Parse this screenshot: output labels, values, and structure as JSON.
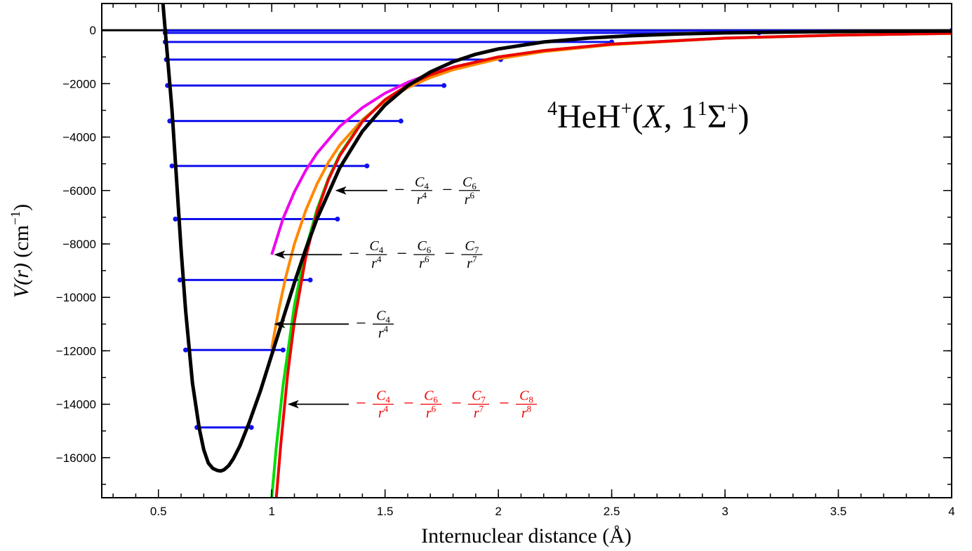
{
  "chart_data": {
    "type": "line",
    "title": "⁴HeH⁺(X, 1¹Σ⁺)",
    "title_parts": {
      "sup1": "4",
      "base1": "HeH",
      "sup2": "+",
      "open": "(",
      "italic": "X",
      "sep": ", 1",
      "sup3": "1",
      "sigma": "Σ",
      "sup4": "+",
      "close": ")"
    },
    "xlabel": "Internuclear distance (Å)",
    "ylabel": {
      "main": "V(r)",
      "unit_base": "(cm",
      "unit_sup": "−1",
      "unit_close": ")"
    },
    "xlim": [
      0.25,
      4.0
    ],
    "ylim": [
      -17500,
      1000
    ],
    "x_ticks": [
      0.5,
      1,
      1.5,
      2,
      2.5,
      3,
      3.5,
      4
    ],
    "x_tick_labels": [
      "0.5",
      "1",
      "1.5",
      "2",
      "2.5",
      "3",
      "3.5",
      "4"
    ],
    "y_ticks": [
      0,
      -2000,
      -4000,
      -6000,
      -8000,
      -10000,
      -12000,
      -14000,
      -16000
    ],
    "y_tick_labels": [
      "0",
      "−2000",
      "−4000",
      "−6000",
      "−8000",
      "−10000",
      "−12000",
      "−14000",
      "−16000"
    ],
    "grid": false,
    "potential_curve": {
      "color": "#000000",
      "x": [
        0.52,
        0.53,
        0.54,
        0.56,
        0.58,
        0.6,
        0.62,
        0.65,
        0.68,
        0.7,
        0.72,
        0.74,
        0.76,
        0.775,
        0.79,
        0.81,
        0.83,
        0.86,
        0.9,
        0.95,
        1.0,
        1.05,
        1.1,
        1.15,
        1.2,
        1.3,
        1.4,
        1.5,
        1.6,
        1.7,
        1.8,
        1.9,
        2.0,
        2.2,
        2.4,
        2.6,
        2.8,
        3.0,
        3.3,
        3.6,
        4.0
      ],
      "y": [
        1000,
        0,
        -1000,
        -3000,
        -5600,
        -8200,
        -10500,
        -13200,
        -14900,
        -15700,
        -16200,
        -16400,
        -16480,
        -16500,
        -16450,
        -16300,
        -16050,
        -15550,
        -14700,
        -13500,
        -12150,
        -10800,
        -9450,
        -8200,
        -7050,
        -5150,
        -3780,
        -2800,
        -2080,
        -1560,
        -1180,
        -900,
        -700,
        -440,
        -290,
        -200,
        -140,
        -100,
        -65,
        -45,
        -30
      ]
    },
    "vibrational_levels": {
      "color": "#1010ee",
      "levels": [
        {
          "v": 0,
          "energy": -14870,
          "r_inner": 0.67,
          "r_outer": 0.91
        },
        {
          "v": 1,
          "energy": -11970,
          "r_inner": 0.62,
          "r_outer": 1.05
        },
        {
          "v": 2,
          "energy": -9350,
          "r_inner": 0.595,
          "r_outer": 1.17
        },
        {
          "v": 3,
          "energy": -7070,
          "r_inner": 0.575,
          "r_outer": 1.29
        },
        {
          "v": 4,
          "energy": -5080,
          "r_inner": 0.56,
          "r_outer": 1.42
        },
        {
          "v": 5,
          "energy": -3400,
          "r_inner": 0.55,
          "r_outer": 1.57
        },
        {
          "v": 6,
          "energy": -2070,
          "r_inner": 0.54,
          "r_outer": 1.76
        },
        {
          "v": 7,
          "energy": -1100,
          "r_inner": 0.535,
          "r_outer": 2.01
        },
        {
          "v": 8,
          "energy": -440,
          "r_inner": 0.53,
          "r_outer": 2.5
        },
        {
          "v": 9,
          "energy": -100,
          "r_inner": 0.53,
          "r_outer": 3.15
        },
        {
          "v": 10,
          "energy": -10,
          "r_inner": 0.53,
          "r_outer": 4.0
        }
      ]
    },
    "series": [
      {
        "color": "#ee00ee",
        "x": [
          1.0,
          1.05,
          1.1,
          1.15,
          1.2,
          1.3,
          1.4,
          1.5,
          1.6,
          1.7,
          1.8,
          2.0,
          2.2,
          2.5,
          3.0,
          3.5,
          4.0
        ],
        "y": [
          -8400,
          -7050,
          -6050,
          -5250,
          -4600,
          -3600,
          -2900,
          -2360,
          -1950,
          -1630,
          -1380,
          -1010,
          -770,
          -530,
          -300,
          -185,
          -120
        ]
      },
      {
        "color": "#ff8800",
        "x": [
          1.0,
          1.03,
          1.06,
          1.1,
          1.15,
          1.2,
          1.25,
          1.3,
          1.4,
          1.5,
          1.6,
          1.7,
          1.8,
          2.0,
          2.2,
          2.5,
          3.0,
          3.5,
          4.0
        ],
        "y": [
          -11900,
          -10500,
          -9300,
          -8000,
          -6750,
          -5750,
          -4950,
          -4300,
          -3350,
          -2650,
          -2150,
          -1770,
          -1480,
          -1070,
          -800,
          -540,
          -300,
          -185,
          -120
        ]
      },
      {
        "color": "#00dd00",
        "x": [
          1.0,
          1.02,
          1.05,
          1.1,
          1.15,
          1.2,
          1.25,
          1.3,
          1.4,
          1.5,
          1.6,
          1.7,
          1.8,
          2.0,
          2.2,
          2.5,
          3.0,
          3.5,
          4.0
        ],
        "y": [
          -17500,
          -15600,
          -13300,
          -10300,
          -8200,
          -6700,
          -5550,
          -4650,
          -3400,
          -2600,
          -2060,
          -1670,
          -1390,
          -1000,
          -760,
          -520,
          -290,
          -180,
          -115
        ]
      },
      {
        "color": "#ee0000",
        "x": [
          1.02,
          1.04,
          1.07,
          1.1,
          1.15,
          1.2,
          1.25,
          1.3,
          1.4,
          1.5,
          1.6,
          1.7,
          1.8,
          2.0,
          2.2,
          2.5,
          3.0,
          3.5,
          4.0
        ],
        "y": [
          -17500,
          -15500,
          -12900,
          -10900,
          -8500,
          -6800,
          -5600,
          -4700,
          -3420,
          -2600,
          -2060,
          -1670,
          -1390,
          -1000,
          -760,
          -520,
          -290,
          -180,
          -115
        ]
      }
    ],
    "annotations": [
      {
        "color": "#000000",
        "arrow_tip": [
          1.28,
          -6000
        ],
        "arrow_tail": [
          1.51,
          -6000
        ],
        "terms": [
          {
            "sign": "−",
            "num": "C",
            "sub": "4",
            "den": "r",
            "pow": "4"
          },
          {
            "sign": "−",
            "num": "C",
            "sub": "6",
            "den": "r",
            "pow": "6"
          }
        ]
      },
      {
        "color": "#000000",
        "arrow_tip": [
          1.01,
          -8400
        ],
        "arrow_tail": [
          1.31,
          -8400
        ],
        "terms": [
          {
            "sign": "−",
            "num": "C",
            "sub": "4",
            "den": "r",
            "pow": "4"
          },
          {
            "sign": "−",
            "num": "C",
            "sub": "6",
            "den": "r",
            "pow": "6"
          },
          {
            "sign": "−",
            "num": "C",
            "sub": "7",
            "den": "r",
            "pow": "7"
          }
        ]
      },
      {
        "color": "#000000",
        "arrow_tip": [
          1.01,
          -11000
        ],
        "arrow_tail": [
          1.34,
          -11000
        ],
        "terms": [
          {
            "sign": "−",
            "num": "C",
            "sub": "4",
            "den": "r",
            "pow": "4"
          }
        ]
      },
      {
        "color": "#ee0000",
        "arrow_tip": [
          1.07,
          -14000
        ],
        "arrow_tail": [
          1.34,
          -14000
        ],
        "terms": [
          {
            "sign": "−",
            "num": "C",
            "sub": "4",
            "den": "r",
            "pow": "4"
          },
          {
            "sign": "−",
            "num": "C",
            "sub": "6",
            "den": "r",
            "pow": "6"
          },
          {
            "sign": "−",
            "num": "C",
            "sub": "7",
            "den": "r",
            "pow": "7"
          },
          {
            "sign": "−",
            "num": "C",
            "sub": "8",
            "den": "r",
            "pow": "8"
          }
        ]
      }
    ]
  }
}
